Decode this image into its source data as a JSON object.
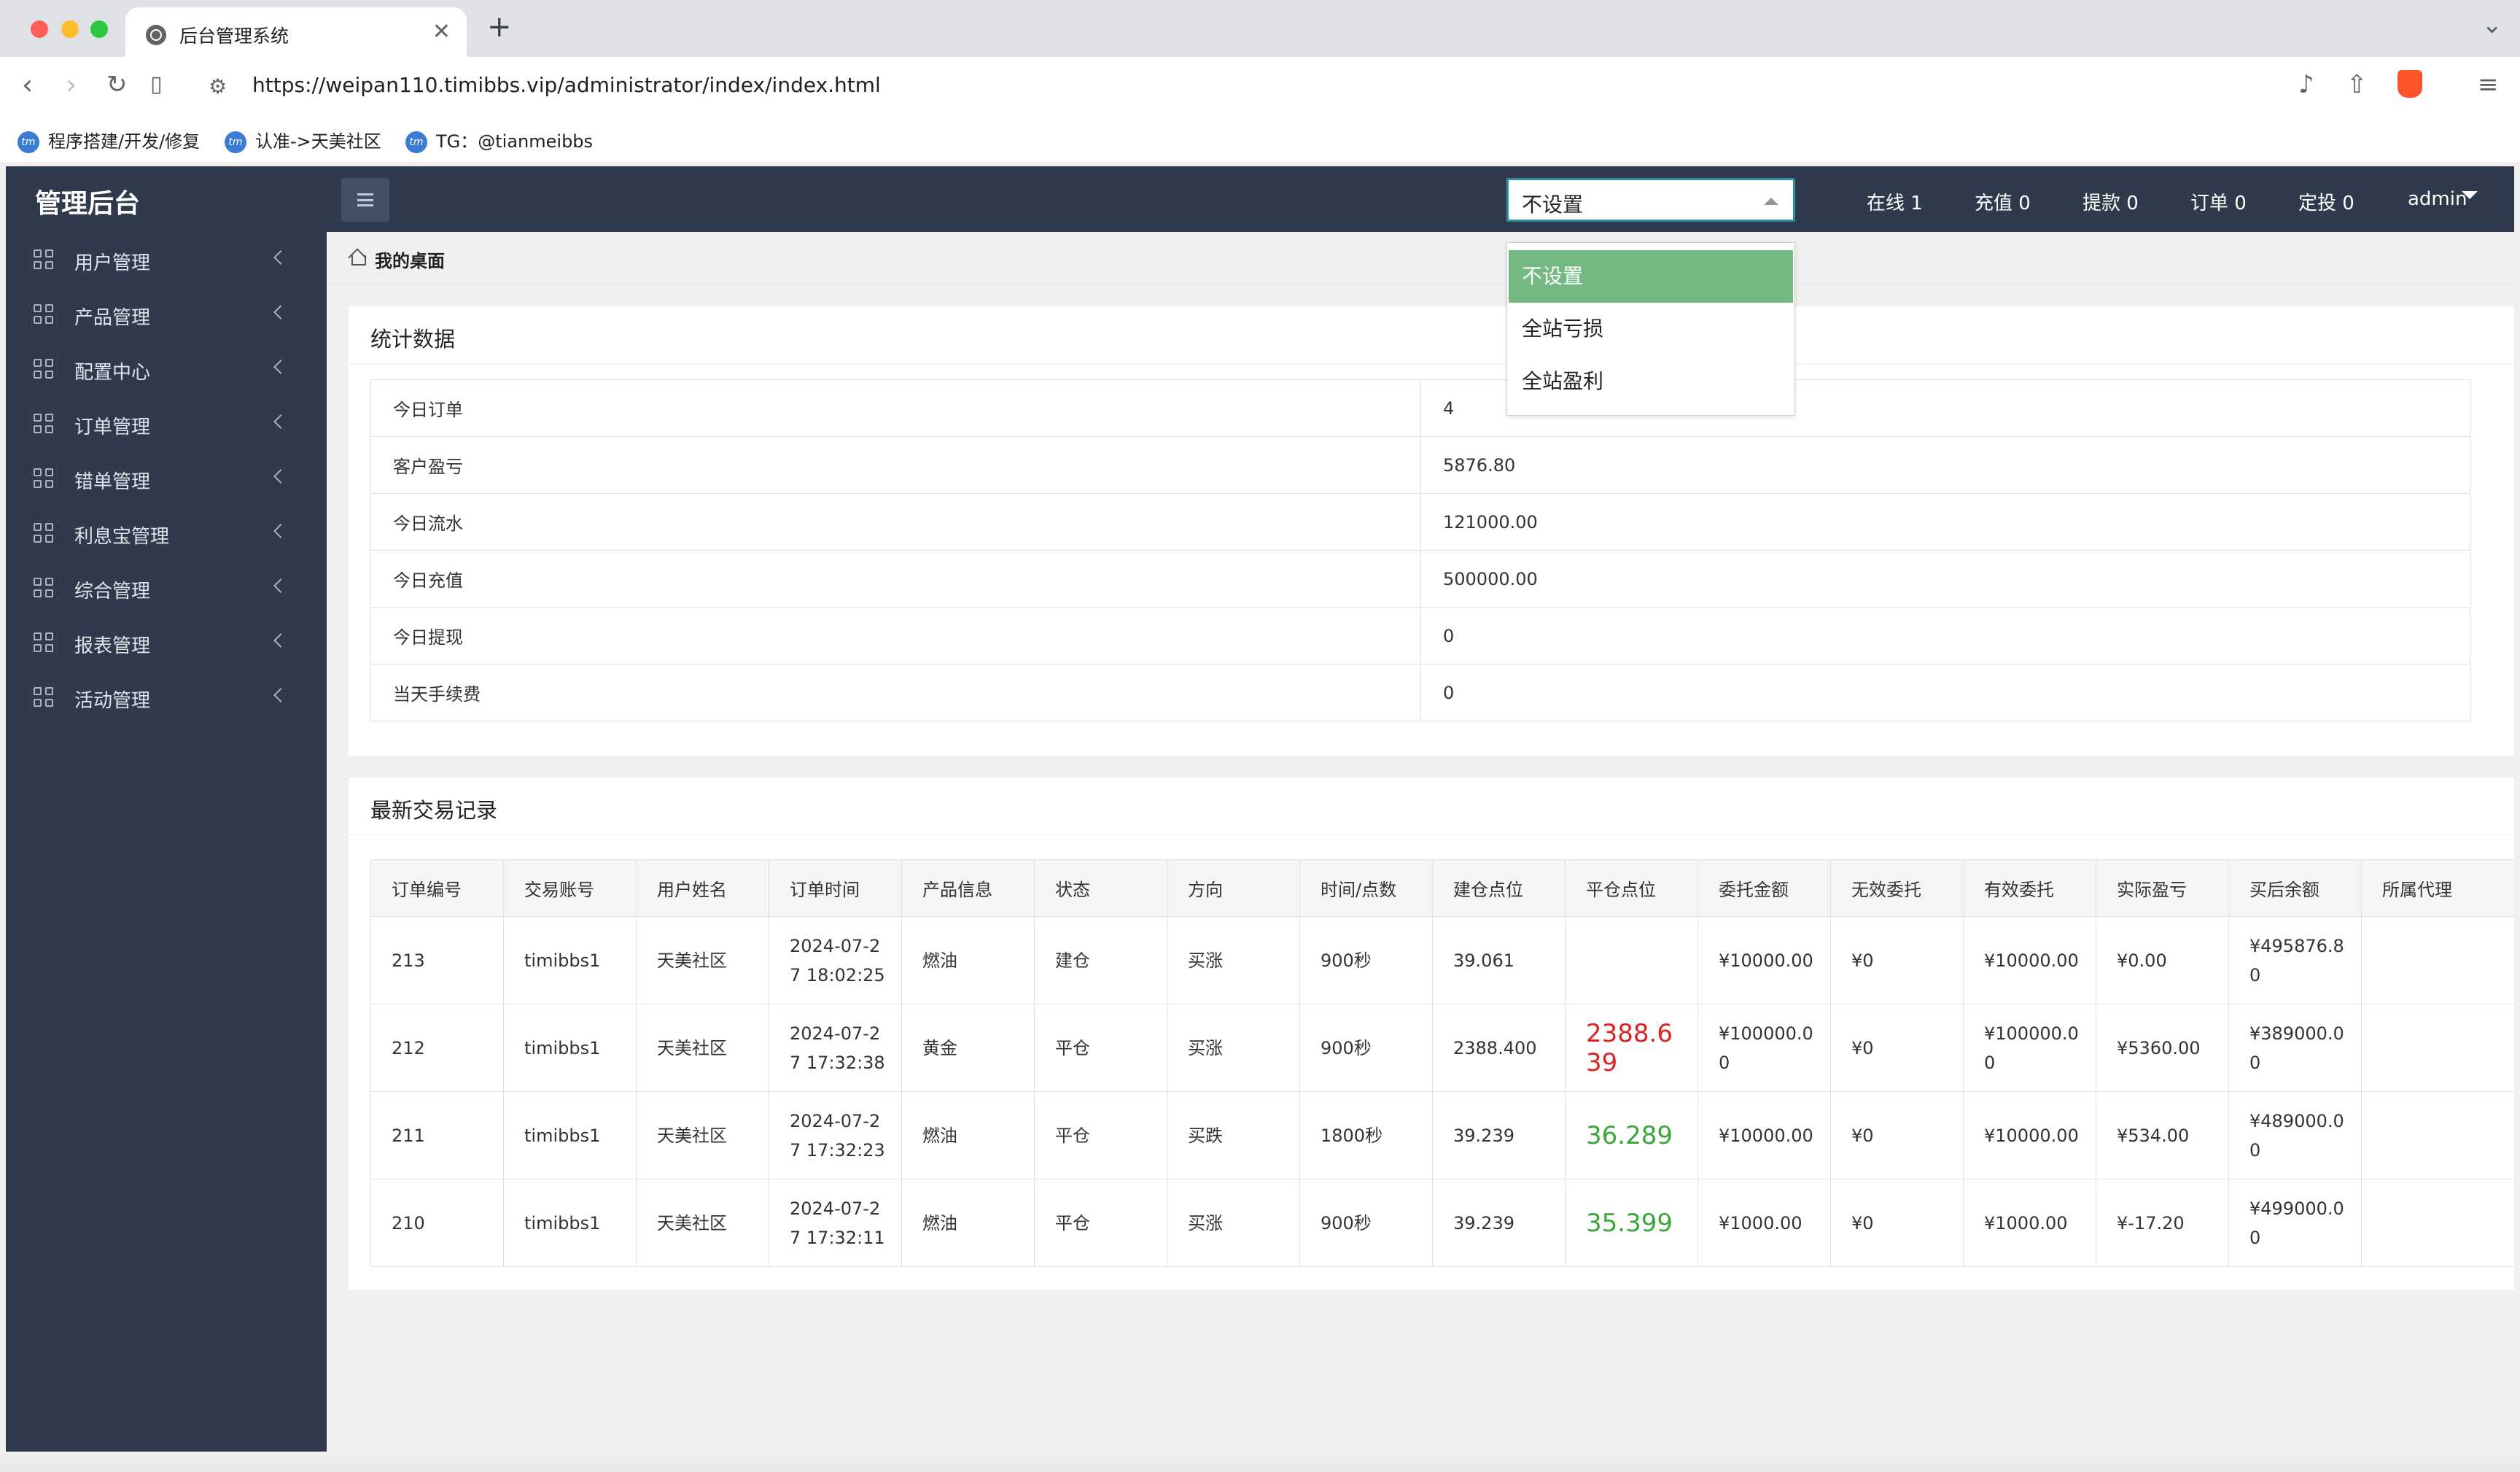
{
  "browser": {
    "tab_title": "后台管理系统",
    "close_glyph": "✕",
    "new_tab_glyph": "+",
    "url": "https://weipan110.timibbs.vip/administrator/index/index.html",
    "bookmarks": [
      "程序搭建/开发/修复",
      "认准->天美社区",
      "TG：@tianmeibbs"
    ],
    "bookmark_icon_text": "tm"
  },
  "header": {
    "logo": "管理后台",
    "mode_select": {
      "value": "不设置",
      "options": [
        "不设置",
        "全站亏损",
        "全站盈利"
      ],
      "selected_index": 0
    },
    "stats": {
      "online": "在线 1",
      "recharge": "充值 0",
      "withdraw": "提款 0",
      "orders": "订单 0",
      "fixed": "定投 0"
    },
    "user": "admin"
  },
  "sidebar": {
    "items": [
      {
        "label": "用户管理"
      },
      {
        "label": "产品管理"
      },
      {
        "label": "配置中心"
      },
      {
        "label": "订单管理"
      },
      {
        "label": "错单管理"
      },
      {
        "label": "利息宝管理"
      },
      {
        "label": "综合管理"
      },
      {
        "label": "报表管理"
      },
      {
        "label": "活动管理"
      }
    ]
  },
  "breadcrumb": "我的桌面",
  "stats_card": {
    "title": "统计数据",
    "rows": [
      {
        "key": "今日订单",
        "value": "4"
      },
      {
        "key": "客户盈亏",
        "value": "5876.80"
      },
      {
        "key": "今日流水",
        "value": "121000.00"
      },
      {
        "key": "今日充值",
        "value": "500000.00"
      },
      {
        "key": "今日提现",
        "value": "0"
      },
      {
        "key": "当天手续费",
        "value": "0"
      }
    ]
  },
  "trades_card": {
    "title": "最新交易记录",
    "columns": [
      "订单编号",
      "交易账号",
      "用户姓名",
      "订单时间",
      "产品信息",
      "状态",
      "方向",
      "时间/点数",
      "建仓点位",
      "平仓点位",
      "委托金额",
      "无效委托",
      "有效委托",
      "实际盈亏",
      "买后余额",
      "所属代理"
    ],
    "rows": [
      {
        "id": "213",
        "account": "timibbs1",
        "name": "天美社区",
        "time": "2024-07-27 18:02:25",
        "product": "燃油",
        "status": "建仓",
        "direction": "买涨",
        "duration": "900秒",
        "open": "39.061",
        "close": "",
        "close_color": "",
        "amount": "¥10000.00",
        "invalid": "¥0",
        "valid": "¥10000.00",
        "pnl": "¥0.00",
        "balance": "¥495876.80",
        "agent": ""
      },
      {
        "id": "212",
        "account": "timibbs1",
        "name": "天美社区",
        "time": "2024-07-27 17:32:38",
        "product": "黄金",
        "status": "平仓",
        "direction": "买涨",
        "duration": "900秒",
        "open": "2388.400",
        "close": "2388.639",
        "close_color": "#dd2222",
        "amount": "¥100000.00",
        "invalid": "¥0",
        "valid": "¥100000.00",
        "pnl": "¥5360.00",
        "balance": "¥389000.00",
        "agent": ""
      },
      {
        "id": "211",
        "account": "timibbs1",
        "name": "天美社区",
        "time": "2024-07-27 17:32:23",
        "product": "燃油",
        "status": "平仓",
        "direction": "买跌",
        "duration": "1800秒",
        "open": "39.239",
        "close": "36.289",
        "close_color": "#3aa63a",
        "amount": "¥10000.00",
        "invalid": "¥0",
        "valid": "¥10000.00",
        "pnl": "¥534.00",
        "balance": "¥489000.00",
        "agent": ""
      },
      {
        "id": "210",
        "account": "timibbs1",
        "name": "天美社区",
        "time": "2024-07-27 17:32:11",
        "product": "燃油",
        "status": "平仓",
        "direction": "买涨",
        "duration": "900秒",
        "open": "39.239",
        "close": "35.399",
        "close_color": "#3aa63a",
        "amount": "¥1000.00",
        "invalid": "¥0",
        "valid": "¥1000.00",
        "pnl": "¥-17.20",
        "balance": "¥499000.00",
        "agent": ""
      }
    ]
  },
  "colors": {
    "header_bg": "#2f3b4c",
    "selected_option": "#74b982",
    "select_border": "#2d8f9d",
    "loss": "#dd2222",
    "gain": "#3aa63a"
  },
  "icons": [
    "back-icon",
    "forward-icon",
    "reload-icon",
    "bookmark-icon",
    "site-info-icon",
    "music-icon",
    "share-icon",
    "brave-icon",
    "menu-icon",
    "hamburger-icon",
    "grid-icon",
    "chevron-left-icon",
    "home-icon",
    "caret-down-icon"
  ]
}
